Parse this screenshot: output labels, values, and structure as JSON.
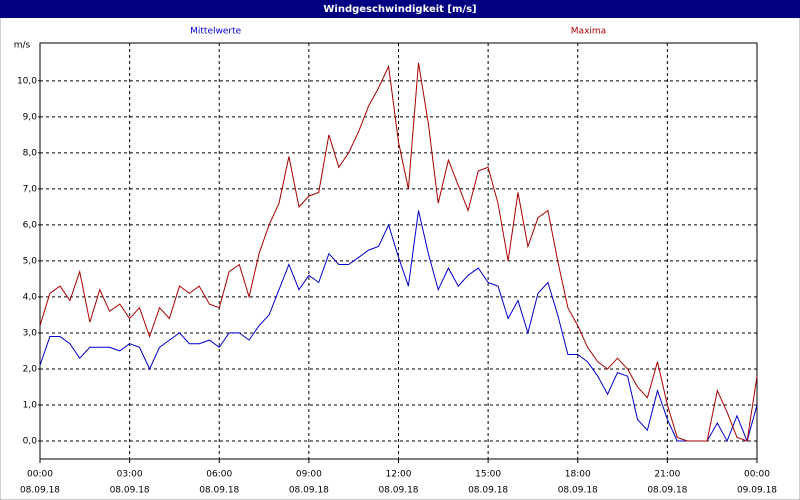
{
  "chart_data": {
    "type": "line",
    "title": "Windgeschwindigkeit [m/s]",
    "ylabel": "m/s",
    "xlim": [
      0,
      24
    ],
    "ylim": [
      -0.5,
      11.05
    ],
    "grid": true,
    "xticks": [
      {
        "value": 0,
        "label": "00:00",
        "date": "08.09.18"
      },
      {
        "value": 3,
        "label": "03:00",
        "date": "08.09.18"
      },
      {
        "value": 6,
        "label": "06:00",
        "date": "08.09.18"
      },
      {
        "value": 9,
        "label": "09:00",
        "date": "08.09.18"
      },
      {
        "value": 12,
        "label": "12:00",
        "date": "08.09.18"
      },
      {
        "value": 15,
        "label": "15:00",
        "date": "08.09.18"
      },
      {
        "value": 18,
        "label": "18:00",
        "date": "08.09.18"
      },
      {
        "value": 21,
        "label": "21:00",
        "date": "08.09.18"
      },
      {
        "value": 24,
        "label": "00:00",
        "date": "09.09.18"
      }
    ],
    "yticks": [
      {
        "value": 0,
        "label": "0,0"
      },
      {
        "value": 1,
        "label": "1,0"
      },
      {
        "value": 2,
        "label": "2,0"
      },
      {
        "value": 3,
        "label": "3,0"
      },
      {
        "value": 4,
        "label": "4,0"
      },
      {
        "value": 5,
        "label": "5,0"
      },
      {
        "value": 6,
        "label": "6,0"
      },
      {
        "value": 7,
        "label": "7,0"
      },
      {
        "value": 8,
        "label": "8,0"
      },
      {
        "value": 9,
        "label": "9,0"
      },
      {
        "value": 10,
        "label": "10,0"
      }
    ],
    "x": [
      0,
      0.33,
      0.67,
      1,
      1.33,
      1.67,
      2,
      2.33,
      2.67,
      3,
      3.33,
      3.67,
      4,
      4.33,
      4.67,
      5,
      5.33,
      5.67,
      6,
      6.33,
      6.67,
      7,
      7.33,
      7.67,
      8,
      8.33,
      8.67,
      9,
      9.33,
      9.67,
      10,
      10.33,
      10.67,
      11,
      11.33,
      11.67,
      12,
      12.33,
      12.67,
      13,
      13.33,
      13.67,
      14,
      14.33,
      14.67,
      15,
      15.33,
      15.67,
      16,
      16.33,
      16.67,
      17,
      17.33,
      17.67,
      18,
      18.33,
      18.67,
      19,
      19.33,
      19.67,
      20,
      20.33,
      20.67,
      21,
      21.33,
      21.67,
      22,
      22.33,
      22.67,
      23,
      23.33,
      23.67,
      24
    ],
    "series": [
      {
        "name": "Mittelwerte",
        "color": "#0000cc",
        "values": [
          2.1,
          2.9,
          2.9,
          2.7,
          2.3,
          2.6,
          2.6,
          2.6,
          2.5,
          2.7,
          2.6,
          2.0,
          2.6,
          2.8,
          3.0,
          2.7,
          2.7,
          2.8,
          2.6,
          3.0,
          3.0,
          2.8,
          3.2,
          3.5,
          4.2,
          4.9,
          4.2,
          4.6,
          4.4,
          5.2,
          4.9,
          4.9,
          5.1,
          5.3,
          5.4,
          6.0,
          5.1,
          4.3,
          6.4,
          5.2,
          4.2,
          4.8,
          4.3,
          4.6,
          4.8,
          4.4,
          4.3,
          3.4,
          3.9,
          3.0,
          4.1,
          4.4,
          3.5,
          2.4,
          2.4,
          2.2,
          1.8,
          1.3,
          1.9,
          1.8,
          0.6,
          0.3,
          1.4,
          0.6,
          0.0,
          0.0,
          0.0,
          0.0,
          0.5,
          0.0,
          0.7,
          0.0,
          1.0
        ]
      },
      {
        "name": "Maxima",
        "color": "#aa0000",
        "values": [
          3.2,
          4.1,
          4.3,
          3.9,
          4.7,
          3.3,
          4.2,
          3.6,
          3.8,
          3.4,
          3.7,
          2.9,
          3.7,
          3.4,
          4.3,
          4.1,
          4.3,
          3.8,
          3.7,
          4.7,
          4.9,
          4.0,
          5.2,
          6.0,
          6.6,
          7.9,
          6.5,
          6.8,
          6.9,
          8.5,
          7.6,
          8.0,
          8.6,
          9.3,
          9.8,
          10.4,
          8.3,
          7.0,
          10.5,
          8.8,
          6.6,
          7.8,
          7.1,
          6.4,
          7.5,
          7.6,
          6.6,
          5.0,
          6.9,
          5.4,
          6.2,
          6.4,
          5.0,
          3.7,
          3.2,
          2.6,
          2.2,
          2.0,
          2.3,
          2.0,
          1.5,
          1.2,
          2.2,
          1.0,
          0.1,
          0.0,
          0.0,
          0.0,
          1.4,
          0.8,
          0.1,
          0.0,
          1.8
        ]
      }
    ]
  }
}
